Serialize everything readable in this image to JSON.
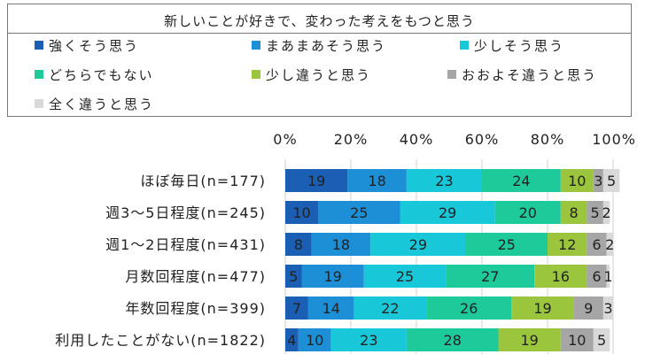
{
  "legend_title": "新しいことが好きで、変わった考えをもつと思う",
  "chart_data": {
    "type": "bar",
    "stacked": true,
    "orientation": "horizontal",
    "categories": [
      "ほぼ毎日(n=177)",
      "週3～5日程度(n=245)",
      "週1～2日程度(n=431)",
      "月数回程度(n=477)",
      "年数回程度(n=399)",
      "利用したことがない(n=1822)"
    ],
    "series": [
      {
        "name": "強くそう思う",
        "color": "#1a5fb4",
        "values": [
          19,
          10,
          8,
          5,
          7,
          4
        ]
      },
      {
        "name": "まあまあそう思う",
        "color": "#1c8fd6",
        "values": [
          18,
          25,
          18,
          19,
          14,
          10
        ]
      },
      {
        "name": "少しそう思う",
        "color": "#19c8d8",
        "values": [
          23,
          29,
          29,
          25,
          22,
          23
        ]
      },
      {
        "name": "どちらでもない",
        "color": "#1ec99a",
        "values": [
          24,
          20,
          25,
          27,
          26,
          28
        ]
      },
      {
        "name": "少し違うと思う",
        "color": "#9bc53d",
        "values": [
          10,
          8,
          12,
          16,
          19,
          19
        ]
      },
      {
        "name": "おおよそ違うと思う",
        "color": "#a6a6a6",
        "values": [
          3,
          5,
          6,
          6,
          9,
          10
        ]
      },
      {
        "name": "全く違うと思う",
        "color": "#d9d9d9",
        "values": [
          5,
          2,
          2,
          1,
          3,
          5
        ]
      }
    ],
    "xticks": [
      "0%",
      "20%",
      "40%",
      "60%",
      "80%",
      "100%"
    ],
    "xlim": [
      0,
      100
    ],
    "grid": true
  }
}
